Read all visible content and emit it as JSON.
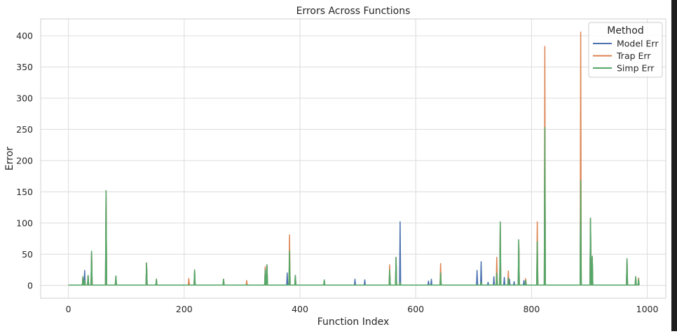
{
  "chart_data": {
    "type": "line",
    "title": "Errors Across Functions",
    "xlabel": "Function Index",
    "ylabel": "Error",
    "xlim": [
      -48,
      1032
    ],
    "ylim": [
      -20.5,
      427
    ],
    "xticks": [
      0,
      200,
      400,
      600,
      800,
      1000
    ],
    "yticks": [
      0,
      50,
      100,
      150,
      200,
      250,
      300,
      350,
      400
    ],
    "grid": true,
    "legend": {
      "title": "Method",
      "position": "top-right"
    },
    "x_extent": [
      0,
      986
    ],
    "baseline": 0.5,
    "series": [
      {
        "name": "Model Err",
        "color": "#4c72b0",
        "peaks": [
          [
            25,
            12
          ],
          [
            28,
            24
          ],
          [
            34,
            16
          ],
          [
            40,
            54
          ],
          [
            65,
            150
          ],
          [
            82,
            15
          ],
          [
            135,
            36
          ],
          [
            152,
            10
          ],
          [
            218,
            24
          ],
          [
            268,
            10
          ],
          [
            340,
            28
          ],
          [
            343,
            33
          ],
          [
            378,
            20
          ],
          [
            382,
            50
          ],
          [
            392,
            16
          ],
          [
            442,
            8
          ],
          [
            495,
            10
          ],
          [
            512,
            9
          ],
          [
            555,
            20
          ],
          [
            566,
            45
          ],
          [
            573,
            102
          ],
          [
            622,
            7
          ],
          [
            627,
            10
          ],
          [
            643,
            23
          ],
          [
            706,
            24
          ],
          [
            713,
            38
          ],
          [
            725,
            5
          ],
          [
            735,
            14
          ],
          [
            740,
            22
          ],
          [
            746,
            100
          ],
          [
            753,
            13
          ],
          [
            762,
            10
          ],
          [
            770,
            6
          ],
          [
            778,
            72
          ],
          [
            787,
            8
          ],
          [
            810,
            67
          ],
          [
            823,
            250
          ],
          [
            885,
            165
          ],
          [
            902,
            107
          ],
          [
            905,
            45
          ],
          [
            965,
            42
          ],
          [
            980,
            14
          ]
        ]
      },
      {
        "name": "Trap Err",
        "color": "#dd8452",
        "peaks": [
          [
            25,
            14
          ],
          [
            28,
            8
          ],
          [
            34,
            16
          ],
          [
            40,
            54
          ],
          [
            65,
            152
          ],
          [
            82,
            15
          ],
          [
            135,
            36
          ],
          [
            152,
            10
          ],
          [
            208,
            11
          ],
          [
            218,
            24
          ],
          [
            268,
            10
          ],
          [
            308,
            8
          ],
          [
            340,
            30
          ],
          [
            343,
            33
          ],
          [
            382,
            81
          ],
          [
            392,
            16
          ],
          [
            442,
            8
          ],
          [
            555,
            33
          ],
          [
            566,
            45
          ],
          [
            573,
            5
          ],
          [
            643,
            35
          ],
          [
            713,
            5
          ],
          [
            740,
            45
          ],
          [
            746,
            102
          ],
          [
            760,
            23
          ],
          [
            778,
            73
          ],
          [
            790,
            11
          ],
          [
            810,
            102
          ],
          [
            823,
            383
          ],
          [
            885,
            406
          ],
          [
            902,
            107
          ],
          [
            905,
            45
          ],
          [
            965,
            42
          ],
          [
            980,
            14
          ],
          [
            985,
            12
          ]
        ]
      },
      {
        "name": "Simp Err",
        "color": "#55a868",
        "peaks": [
          [
            25,
            14
          ],
          [
            28,
            8
          ],
          [
            34,
            16
          ],
          [
            40,
            55
          ],
          [
            65,
            152
          ],
          [
            82,
            15
          ],
          [
            135,
            36
          ],
          [
            152,
            10
          ],
          [
            218,
            25
          ],
          [
            268,
            10
          ],
          [
            340,
            25
          ],
          [
            343,
            33
          ],
          [
            382,
            55
          ],
          [
            392,
            16
          ],
          [
            442,
            9
          ],
          [
            555,
            25
          ],
          [
            566,
            45
          ],
          [
            573,
            5
          ],
          [
            643,
            20
          ],
          [
            713,
            5
          ],
          [
            740,
            20
          ],
          [
            746,
            102
          ],
          [
            760,
            12
          ],
          [
            778,
            73
          ],
          [
            790,
            8
          ],
          [
            810,
            70
          ],
          [
            823,
            253
          ],
          [
            885,
            168
          ],
          [
            902,
            108
          ],
          [
            905,
            47
          ],
          [
            965,
            43
          ],
          [
            980,
            14
          ],
          [
            985,
            10
          ]
        ]
      }
    ]
  }
}
